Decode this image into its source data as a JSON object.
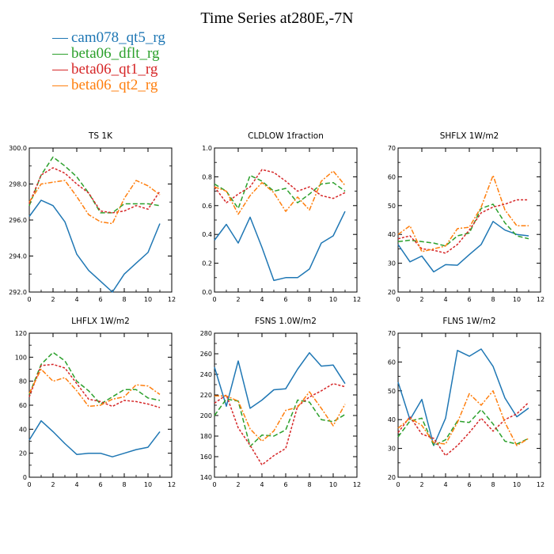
{
  "figure": {
    "title": "Time Series at280E,-7N"
  },
  "series_style": [
    {
      "name": "cam078_qt5_rg",
      "color": "#1f77b4",
      "dash": ""
    },
    {
      "name": "beta06_dflt_rg",
      "color": "#2ca02c",
      "dash": "6,3"
    },
    {
      "name": "beta06_qt1_rg",
      "color": "#d62728",
      "dash": "3,2"
    },
    {
      "name": "beta06_qt2_rg",
      "color": "#ff7f0e",
      "dash": "6,2,2,2"
    }
  ],
  "chart_data": [
    {
      "type": "line",
      "title": "TS 1K",
      "x": [
        0,
        1,
        2,
        3,
        4,
        5,
        6,
        7,
        8,
        9,
        10,
        11
      ],
      "xlim": [
        0,
        12
      ],
      "xticks": [
        0,
        2,
        4,
        6,
        8,
        10,
        12
      ],
      "ylim": [
        292,
        300
      ],
      "yticks": [
        292.0,
        294.0,
        296.0,
        298.0,
        300.0
      ],
      "ytick_labels": [
        "292.0",
        "294.0",
        "296.0",
        "298.0",
        "300.0"
      ],
      "series": [
        {
          "name": "cam078_qt5_rg",
          "values": [
            296.2,
            297.1,
            296.8,
            295.9,
            294.1,
            293.2,
            292.6,
            292.0,
            293.0,
            293.6,
            294.2,
            295.8
          ]
        },
        {
          "name": "beta06_dflt_rg",
          "values": [
            296.8,
            298.5,
            299.5,
            299.0,
            298.4,
            297.5,
            296.4,
            296.4,
            296.9,
            296.9,
            296.9,
            296.8
          ]
        },
        {
          "name": "beta06_qt1_rg",
          "values": [
            296.9,
            298.5,
            298.9,
            298.6,
            298.0,
            297.5,
            296.5,
            296.4,
            296.5,
            296.8,
            296.6,
            297.6
          ]
        },
        {
          "name": "beta06_qt2_rg",
          "values": [
            297.0,
            298.0,
            298.1,
            298.2,
            297.3,
            296.3,
            295.9,
            295.8,
            297.2,
            298.2,
            297.9,
            297.4
          ]
        }
      ]
    },
    {
      "type": "line",
      "title": "CLDLOW 1fraction",
      "x": [
        0,
        1,
        2,
        3,
        4,
        5,
        6,
        7,
        8,
        9,
        10,
        11
      ],
      "xlim": [
        0,
        12
      ],
      "xticks": [
        0,
        2,
        4,
        6,
        8,
        10,
        12
      ],
      "ylim": [
        0,
        1
      ],
      "yticks": [
        0,
        0.2,
        0.4,
        0.6,
        0.8,
        1.0
      ],
      "ytick_labels": [
        "0.0",
        "0.2",
        "0.4",
        "0.6",
        "0.8",
        "1.0"
      ],
      "series": [
        {
          "name": "cam078_qt5_rg",
          "values": [
            0.36,
            0.47,
            0.34,
            0.52,
            0.31,
            0.08,
            0.1,
            0.1,
            0.16,
            0.34,
            0.39,
            0.56
          ]
        },
        {
          "name": "beta06_dflt_rg",
          "values": [
            0.75,
            0.7,
            0.58,
            0.81,
            0.77,
            0.7,
            0.72,
            0.62,
            0.68,
            0.75,
            0.76,
            0.7
          ]
        },
        {
          "name": "beta06_qt1_rg",
          "values": [
            0.73,
            0.62,
            0.68,
            0.73,
            0.85,
            0.83,
            0.77,
            0.7,
            0.73,
            0.67,
            0.65,
            0.69
          ]
        },
        {
          "name": "beta06_qt2_rg",
          "values": [
            0.73,
            0.7,
            0.54,
            0.67,
            0.76,
            0.69,
            0.56,
            0.66,
            0.57,
            0.77,
            0.84,
            0.74
          ]
        }
      ]
    },
    {
      "type": "line",
      "title": "SHFLX 1W/m2",
      "x": [
        0,
        1,
        2,
        3,
        4,
        5,
        6,
        7,
        8,
        9,
        10,
        11
      ],
      "xlim": [
        0,
        12
      ],
      "xticks": [
        0,
        2,
        4,
        6,
        8,
        10,
        12
      ],
      "ylim": [
        20,
        70
      ],
      "yticks": [
        20,
        30,
        40,
        50,
        60,
        70
      ],
      "ytick_labels": [
        "20",
        "30",
        "40",
        "50",
        "60",
        "70"
      ],
      "series": [
        {
          "name": "cam078_qt5_rg",
          "values": [
            36.5,
            30.5,
            32.5,
            27.0,
            29.5,
            29.3,
            33.0,
            36.5,
            44.5,
            41.5,
            40.0,
            39.5
          ]
        },
        {
          "name": "beta06_dflt_rg",
          "values": [
            37.5,
            38.0,
            37.5,
            37.0,
            36.0,
            39.5,
            40.5,
            49.0,
            50.5,
            44.0,
            39.5,
            38.5
          ]
        },
        {
          "name": "beta06_qt1_rg",
          "values": [
            38.5,
            39.5,
            35.0,
            34.5,
            33.5,
            36.5,
            41.5,
            47.5,
            49.5,
            50.5,
            52.0,
            52.0
          ]
        },
        {
          "name": "beta06_qt2_rg",
          "values": [
            40.0,
            43.0,
            34.0,
            35.0,
            36.0,
            42.0,
            42.5,
            49.5,
            60.5,
            48.5,
            43.0,
            43.0
          ]
        }
      ]
    },
    {
      "type": "line",
      "title": "LHFLX 1W/m2",
      "x": [
        0,
        1,
        2,
        3,
        4,
        5,
        6,
        7,
        8,
        9,
        10,
        11
      ],
      "xlim": [
        0,
        12
      ],
      "xticks": [
        0,
        2,
        4,
        6,
        8,
        10,
        12
      ],
      "ylim": [
        0,
        120
      ],
      "yticks": [
        0,
        20,
        40,
        60,
        80,
        100,
        120
      ],
      "ytick_labels": [
        "0",
        "20",
        "40",
        "60",
        "80",
        "100",
        "120"
      ],
      "series": [
        {
          "name": "cam078_qt5_rg",
          "values": [
            31,
            47,
            38,
            28,
            19,
            20,
            20,
            17,
            20,
            23,
            25,
            38
          ]
        },
        {
          "name": "beta06_dflt_rg",
          "values": [
            69,
            94,
            104,
            97,
            80,
            72,
            61,
            67,
            73,
            73,
            66,
            64
          ]
        },
        {
          "name": "beta06_qt1_rg",
          "values": [
            67,
            93,
            94,
            91,
            78,
            65,
            63,
            59,
            64,
            63,
            61,
            58
          ]
        },
        {
          "name": "beta06_qt2_rg",
          "values": [
            70,
            90,
            80,
            83,
            72,
            59,
            60,
            65,
            67,
            77,
            76,
            69
          ]
        }
      ]
    },
    {
      "type": "line",
      "title": "FSNS 1.0W/m2",
      "x": [
        0,
        1,
        2,
        3,
        4,
        5,
        6,
        7,
        8,
        9,
        10,
        11
      ],
      "xlim": [
        0,
        12
      ],
      "xticks": [
        0,
        2,
        4,
        6,
        8,
        10,
        12
      ],
      "ylim": [
        140,
        280
      ],
      "yticks": [
        140,
        160,
        180,
        200,
        220,
        240,
        260,
        280
      ],
      "ytick_labels": [
        "140",
        "160",
        "180",
        "200",
        "220",
        "240",
        "260",
        "280"
      ],
      "series": [
        {
          "name": "cam078_qt5_rg",
          "values": [
            247,
            209,
            253,
            207,
            215,
            225,
            226,
            245,
            261,
            248,
            249,
            231
          ]
        },
        {
          "name": "beta06_dflt_rg",
          "values": [
            200,
            216,
            214,
            170,
            181,
            180,
            186,
            215,
            213,
            196,
            194,
            201
          ]
        },
        {
          "name": "beta06_qt1_rg",
          "values": [
            212,
            220,
            188,
            171,
            152,
            161,
            168,
            209,
            218,
            224,
            231,
            228
          ]
        },
        {
          "name": "beta06_qt2_rg",
          "values": [
            219,
            219,
            214,
            187,
            175,
            185,
            205,
            208,
            223,
            207,
            190,
            211
          ]
        }
      ]
    },
    {
      "type": "line",
      "title": "FLNS 1W/m2",
      "x": [
        0,
        1,
        2,
        3,
        4,
        5,
        6,
        7,
        8,
        9,
        10,
        11
      ],
      "xlim": [
        0,
        12
      ],
      "xticks": [
        0,
        2,
        4,
        6,
        8,
        10,
        12
      ],
      "ylim": [
        20,
        70
      ],
      "yticks": [
        20,
        30,
        40,
        50,
        60,
        70
      ],
      "ytick_labels": [
        "20",
        "30",
        "40",
        "50",
        "60",
        "70"
      ],
      "series": [
        {
          "name": "cam078_qt5_rg",
          "values": [
            53.0,
            40.0,
            47.0,
            31.0,
            40.5,
            64.0,
            62.0,
            64.5,
            58.5,
            47.5,
            41.0,
            44.0
          ]
        },
        {
          "name": "beta06_dflt_rg",
          "values": [
            34.0,
            39.5,
            40.5,
            31.0,
            33.0,
            39.5,
            39.0,
            43.5,
            38.5,
            32.5,
            31.5,
            33.5
          ]
        },
        {
          "name": "beta06_qt1_rg",
          "values": [
            35.5,
            41.0,
            35.0,
            33.5,
            27.5,
            31.0,
            35.5,
            40.5,
            36.0,
            40.0,
            42.0,
            46.0
          ]
        },
        {
          "name": "beta06_qt2_rg",
          "values": [
            37.0,
            40.5,
            38.0,
            32.0,
            31.5,
            39.0,
            49.0,
            45.0,
            50.0,
            39.0,
            31.0,
            33.5
          ]
        }
      ]
    }
  ]
}
